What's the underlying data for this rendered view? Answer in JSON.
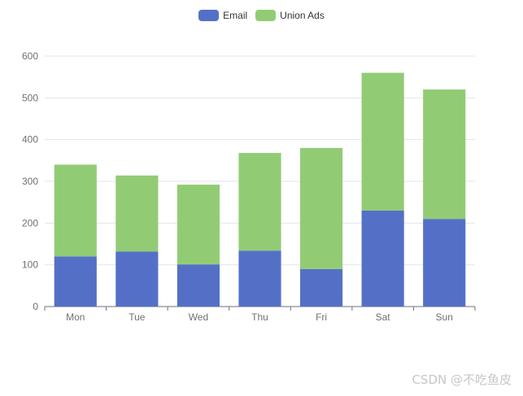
{
  "chart_data": {
    "type": "bar",
    "stacked": true,
    "categories": [
      "Mon",
      "Tue",
      "Wed",
      "Thu",
      "Fri",
      "Sat",
      "Sun"
    ],
    "series": [
      {
        "name": "Email",
        "color": "#5470c6",
        "values": [
          120,
          132,
          101,
          134,
          90,
          230,
          210
        ]
      },
      {
        "name": "Union Ads",
        "color": "#91cc75",
        "values": [
          220,
          182,
          191,
          234,
          290,
          330,
          310
        ]
      }
    ],
    "ylim": [
      0,
      600
    ],
    "yticks": [
      0,
      100,
      200,
      300,
      400,
      500,
      600
    ],
    "grid": true,
    "legend_position": "top-center",
    "title": "",
    "xlabel": "",
    "ylabel": ""
  },
  "watermark": "CSDN @不吃鱼皮"
}
